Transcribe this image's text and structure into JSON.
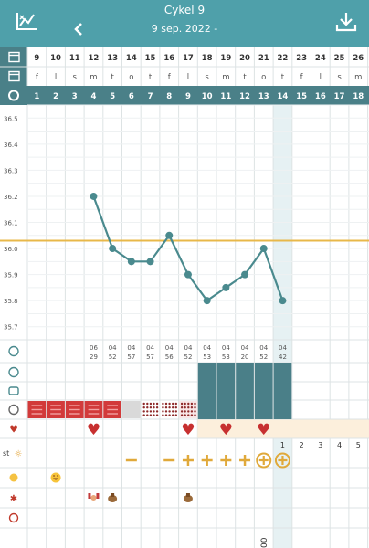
{
  "header": {
    "title": "Cykel 9",
    "subtitle": "9 sep. 2022 -",
    "bg_color": "#4fa0aa"
  },
  "icons": {
    "chart": "chart-icon",
    "back": "chevron-left-icon",
    "download": "download-icon",
    "row_date": "calendar-icon",
    "row_weekday": "calendar-icon",
    "row_cycle_day": "cycle-icon",
    "row_time": "clock-icon",
    "row_ovulation": "ovulation-test-icon",
    "row_tampon": "tampon-icon",
    "row_bleeding": "bleeding-icon",
    "row_sex": "heart-icon",
    "row_test": "sun-icon",
    "row_mood": "mood-icon",
    "row_symptoms": "symptom-icon",
    "row_other": "other-icon"
  },
  "row_labels": {
    "test_prefix": "st"
  },
  "days": {
    "dates": [
      "9",
      "10",
      "11",
      "12",
      "13",
      "14",
      "15",
      "16",
      "17",
      "18",
      "19",
      "20",
      "21",
      "22",
      "23",
      "24",
      "25",
      "26"
    ],
    "weekdays": [
      "f",
      "l",
      "s",
      "m",
      "t",
      "o",
      "t",
      "f",
      "l",
      "s",
      "m",
      "t",
      "o",
      "t",
      "f",
      "l",
      "s",
      "m"
    ],
    "cycle_days": [
      "1",
      "2",
      "3",
      "4",
      "5",
      "6",
      "7",
      "8",
      "9",
      "10",
      "11",
      "12",
      "13",
      "14",
      "15",
      "16",
      "17",
      "18"
    ],
    "today_index": 13
  },
  "chart_data": {
    "type": "line",
    "y_ticks": [
      "36.5",
      "36.4",
      "36.3",
      "36.2",
      "36.1",
      "36.0",
      "35.9",
      "35.8",
      "35.7"
    ],
    "ylim": [
      35.65,
      36.55
    ],
    "coverline": 36.03,
    "x": [
      4,
      5,
      6,
      7,
      8,
      9,
      10,
      11,
      12,
      13,
      14
    ],
    "values": [
      36.2,
      36.0,
      35.95,
      35.95,
      36.05,
      35.9,
      35.8,
      35.85,
      35.9,
      36.0,
      35.8
    ],
    "line_color": "#4a8a8e",
    "coverline_color": "#e8b84a",
    "grid": true
  },
  "times": [
    {
      "index": 3,
      "h": "06",
      "m": "29"
    },
    {
      "index": 4,
      "h": "04",
      "m": "52"
    },
    {
      "index": 5,
      "h": "04",
      "m": "57"
    },
    {
      "index": 6,
      "h": "04",
      "m": "57"
    },
    {
      "index": 7,
      "h": "04",
      "m": "56"
    },
    {
      "index": 8,
      "h": "04",
      "m": "52"
    },
    {
      "index": 9,
      "h": "04",
      "m": "53"
    },
    {
      "index": 10,
      "h": "04",
      "m": "53"
    },
    {
      "index": 11,
      "h": "04",
      "m": "20"
    },
    {
      "index": 12,
      "h": "04",
      "m": "52"
    },
    {
      "index": 13,
      "h": "04",
      "m": "42"
    }
  ],
  "fertile_window": [
    9,
    10,
    11,
    12,
    13
  ],
  "bleeding": [
    {
      "index": 0,
      "type": "heavy"
    },
    {
      "index": 1,
      "type": "heavy"
    },
    {
      "index": 2,
      "type": "heavy"
    },
    {
      "index": 3,
      "type": "heavy"
    },
    {
      "index": 4,
      "type": "light-solid"
    },
    {
      "index": 5,
      "type": "none-gray"
    },
    {
      "index": 6,
      "type": "dotted"
    },
    {
      "index": 7,
      "type": "dotted"
    },
    {
      "index": 8,
      "type": "dotted-light"
    }
  ],
  "sex_days": [
    3,
    8,
    10,
    12
  ],
  "test_marks": [
    {
      "index": 5,
      "type": "minus"
    },
    {
      "index": 7,
      "type": "minus"
    },
    {
      "index": 8,
      "type": "plus"
    },
    {
      "index": 9,
      "type": "plus"
    },
    {
      "index": 10,
      "type": "plus"
    },
    {
      "index": 11,
      "type": "plus"
    },
    {
      "index": 12,
      "type": "plus-circle"
    },
    {
      "index": 13,
      "type": "plus-circle"
    }
  ],
  "luteal_days": [
    {
      "index": 13,
      "label": "1"
    },
    {
      "index": 14,
      "label": "2"
    },
    {
      "index": 15,
      "label": "3"
    },
    {
      "index": 16,
      "label": "4"
    },
    {
      "index": 17,
      "label": "5"
    }
  ],
  "mood": [
    {
      "index": 1,
      "icon": "laughing-face-icon"
    }
  ],
  "symptoms": [
    {
      "index": 3,
      "icon": "muscle-icon"
    },
    {
      "index": 4,
      "icon": "horse-icon"
    },
    {
      "index": 8,
      "icon": "horse-icon"
    }
  ],
  "partial_label": "00"
}
